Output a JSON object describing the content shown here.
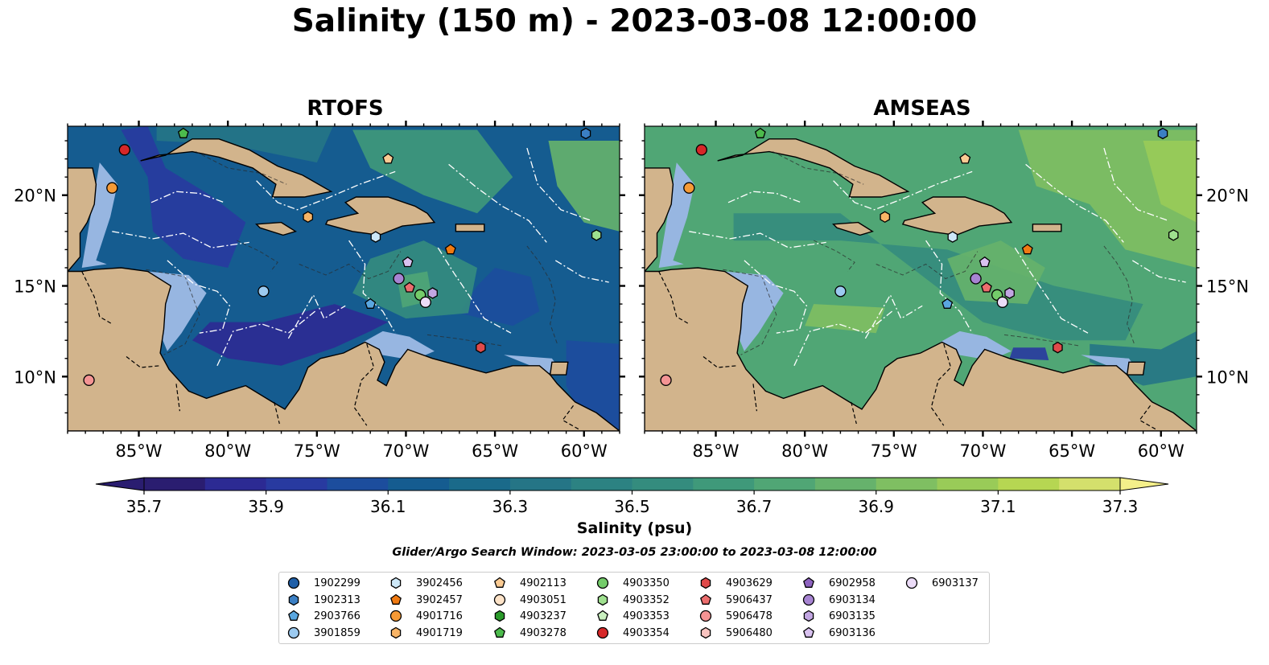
{
  "title": "Salinity (150 m) - 2023-03-08 12:00:00",
  "panels": [
    {
      "title": "RTOFS"
    },
    {
      "title": "AMSEAS"
    }
  ],
  "axes": {
    "lon_ticks": [
      "85°W",
      "80°W",
      "75°W",
      "70°W",
      "65°W",
      "60°W"
    ],
    "lat_ticks": [
      "20°N",
      "15°N",
      "10°N"
    ],
    "lon_values": [
      -85,
      -80,
      -75,
      -70,
      -65,
      -60
    ],
    "lat_values": [
      20,
      15,
      10
    ],
    "lon_range": [
      -89,
      -58
    ],
    "lat_range": [
      7,
      23.8
    ]
  },
  "colorbar": {
    "label": "Salinity (psu)",
    "tick_labels": [
      "35.7",
      "35.9",
      "36.1",
      "36.3",
      "36.5",
      "36.7",
      "36.9",
      "37.1",
      "37.3"
    ],
    "levels": [
      35.7,
      35.8,
      35.9,
      36.0,
      36.1,
      36.2,
      36.3,
      36.4,
      36.5,
      36.6,
      36.7,
      36.8,
      36.9,
      37.0,
      37.1,
      37.2,
      37.3
    ],
    "colors": [
      "#2a1d70",
      "#2c2a93",
      "#283aa0",
      "#1c4d9d",
      "#155c90",
      "#1a6a8a",
      "#257586",
      "#2c8282",
      "#348c7e",
      "#3f997a",
      "#50a675",
      "#66b26c",
      "#7fbf62",
      "#99cb58",
      "#b6d652",
      "#d4e06c"
    ],
    "colormap": "haline"
  },
  "search_window": "Glider/Argo Search Window: 2023-03-05 23:00:00 to 2023-03-08 12:00:00",
  "land_color": "#d2b48c",
  "shelf_color": "#97b6e1",
  "legend": [
    {
      "id": "1902299",
      "marker": "circle",
      "color": "#1f5fa8"
    },
    {
      "id": "1902313",
      "marker": "hexagon",
      "color": "#3b7fc4"
    },
    {
      "id": "2903766",
      "marker": "pentagon",
      "color": "#5aa7e0"
    },
    {
      "id": "3901859",
      "marker": "circle",
      "color": "#9ccaf0"
    },
    {
      "id": "3902456",
      "marker": "hexagon",
      "color": "#cde8f8"
    },
    {
      "id": "3902457",
      "marker": "pentagon",
      "color": "#f07a12"
    },
    {
      "id": "4901716",
      "marker": "circle",
      "color": "#f59a36"
    },
    {
      "id": "4901719",
      "marker": "hexagon",
      "color": "#f8b466"
    },
    {
      "id": "4902113",
      "marker": "pentagon",
      "color": "#fbcb93"
    },
    {
      "id": "4903051",
      "marker": "circle",
      "color": "#fde3c8"
    },
    {
      "id": "4903237",
      "marker": "hexagon",
      "color": "#2a9a2a"
    },
    {
      "id": "4903278",
      "marker": "pentagon",
      "color": "#4cbb4c"
    },
    {
      "id": "4903350",
      "marker": "circle",
      "color": "#74cc6a"
    },
    {
      "id": "4903352",
      "marker": "hexagon",
      "color": "#9fe08f"
    },
    {
      "id": "4903353",
      "marker": "pentagon",
      "color": "#c9f0bf"
    },
    {
      "id": "4903354",
      "marker": "circle",
      "color": "#d62728"
    },
    {
      "id": "4903629",
      "marker": "hexagon",
      "color": "#e04a4a"
    },
    {
      "id": "5906437",
      "marker": "pentagon",
      "color": "#ec6d6d"
    },
    {
      "id": "5906478",
      "marker": "circle",
      "color": "#f49494"
    },
    {
      "id": "5906480",
      "marker": "hexagon",
      "color": "#f9c4c0"
    },
    {
      "id": "6902958",
      "marker": "pentagon",
      "color": "#8e63c0"
    },
    {
      "id": "6903134",
      "marker": "circle",
      "color": "#a784d2"
    },
    {
      "id": "6903135",
      "marker": "hexagon",
      "color": "#c2a6e2"
    },
    {
      "id": "6903136",
      "marker": "pentagon",
      "color": "#d9c2f0"
    },
    {
      "id": "6903137",
      "marker": "circle",
      "color": "#ecdcf8"
    }
  ],
  "chart_data": {
    "type": "heatmap",
    "variable": "Salinity (150 m)",
    "units": "psu",
    "value_range": [
      35.7,
      37.3
    ],
    "panels": [
      "RTOFS",
      "AMSEAS"
    ],
    "floats": [
      {
        "id": "4903354",
        "lon": -85.8,
        "lat": 22.5
      },
      {
        "id": "4901716",
        "lon": -86.5,
        "lat": 20.4
      },
      {
        "id": "4903278",
        "lon": -82.5,
        "lat": 23.4
      },
      {
        "id": "4902113",
        "lon": -71.0,
        "lat": 22.0
      },
      {
        "id": "1902313",
        "lon": -59.9,
        "lat": 23.4
      },
      {
        "id": "4901719",
        "lon": -75.5,
        "lat": 18.8
      },
      {
        "id": "3902456",
        "lon": -71.7,
        "lat": 17.7
      },
      {
        "id": "3902457",
        "lon": -67.5,
        "lat": 17.0
      },
      {
        "id": "4903352",
        "lon": -59.3,
        "lat": 17.8
      },
      {
        "id": "6903136",
        "lon": -69.9,
        "lat": 16.3
      },
      {
        "id": "6903134",
        "lon": -70.4,
        "lat": 15.4
      },
      {
        "id": "5906437",
        "lon": -69.8,
        "lat": 14.9
      },
      {
        "id": "3901859",
        "lon": -78.0,
        "lat": 14.7
      },
      {
        "id": "2903766",
        "lon": -72.0,
        "lat": 14.0
      },
      {
        "id": "4903350",
        "lon": -69.2,
        "lat": 14.5
      },
      {
        "id": "6903135",
        "lon": -68.5,
        "lat": 14.6
      },
      {
        "id": "6903137",
        "lon": -68.9,
        "lat": 14.1
      },
      {
        "id": "4903629",
        "lon": -65.8,
        "lat": 11.6
      },
      {
        "id": "5906478",
        "lon": -87.8,
        "lat": 9.8
      }
    ]
  }
}
